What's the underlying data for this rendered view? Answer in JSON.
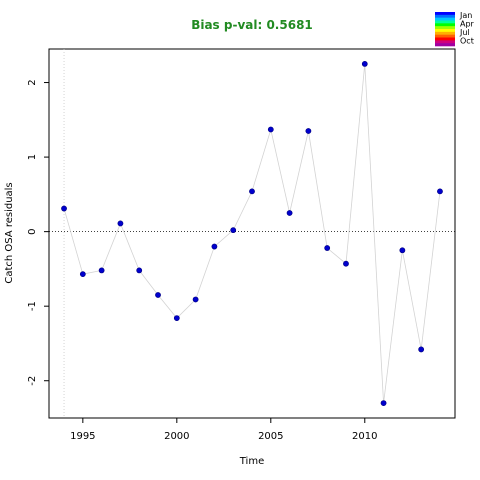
{
  "chart_data": {
    "type": "line",
    "title": "Bias p-val: 0.5681",
    "title_color": "#228B22",
    "xlabel": "Time",
    "ylabel": "Catch OSA residuals",
    "xlim": [
      1993.2,
      2014.8
    ],
    "ylim": [
      -2.5,
      2.45
    ],
    "x_ticks": [
      1995,
      2000,
      2005,
      2010
    ],
    "y_ticks": [
      -2,
      -1,
      0,
      1,
      2
    ],
    "x": [
      1994,
      1995,
      1996,
      1997,
      1998,
      1999,
      2000,
      2001,
      2002,
      2003,
      2004,
      2005,
      2006,
      2007,
      2008,
      2009,
      2010,
      2011,
      2012,
      2013,
      2014
    ],
    "series": [
      {
        "values": [
          0.31,
          -0.57,
          -0.52,
          0.11,
          -0.52,
          -0.85,
          -1.16,
          -0.91,
          -0.2,
          0.02,
          0.54,
          1.37,
          0.25,
          1.35,
          -0.22,
          -0.43,
          2.25,
          -2.3,
          -0.25,
          -1.58,
          0.54
        ],
        "line_color": "#d3d3d3",
        "point_color": "#0000cd"
      }
    ],
    "reference_line_y": 0,
    "vertical_reference_x": 1994,
    "legend": {
      "position": "top-right",
      "labels": [
        "Jan",
        "Apr",
        "Jul",
        "Oct"
      ],
      "colors": [
        "#0000ff",
        "#0070ff",
        "#00c8ff",
        "#00ff9f",
        "#00ff00",
        "#9fff00",
        "#ffff00",
        "#ffb000",
        "#ff6000",
        "#ff0000",
        "#d0007d",
        "#a000a0"
      ]
    }
  }
}
